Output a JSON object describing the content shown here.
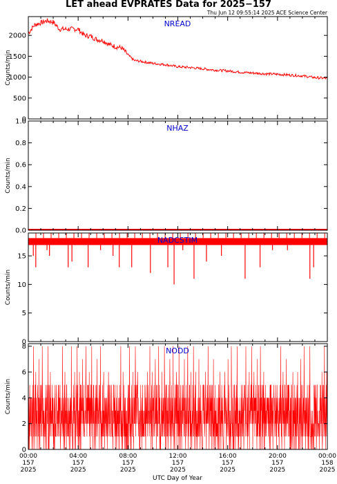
{
  "header": {
    "title": "LET ahead EVPRATES Data for 2025−157",
    "timestamp": "Thu Jun 12 09:55:14 2025 ACE Science Center"
  },
  "xaxis": {
    "label": "UTC Day of Year",
    "ticks": [
      {
        "hour": 0,
        "lines": [
          "00:00",
          "157",
          "2025"
        ]
      },
      {
        "hour": 4,
        "lines": [
          "04:00",
          "157",
          "2025"
        ]
      },
      {
        "hour": 8,
        "lines": [
          "08:00",
          "157",
          "2025"
        ]
      },
      {
        "hour": 12,
        "lines": [
          "12:00",
          "157",
          "2025"
        ]
      },
      {
        "hour": 16,
        "lines": [
          "16:00",
          "157",
          "2025"
        ]
      },
      {
        "hour": 20,
        "lines": [
          "20:00",
          "157",
          "2025"
        ]
      },
      {
        "hour": 24,
        "lines": [
          "00:00",
          "158",
          "2025"
        ]
      }
    ]
  },
  "colors": {
    "data": "#ff0000",
    "panel_title": "#0000cc",
    "axis": "#000000"
  },
  "chart_data": [
    {
      "type": "line",
      "title": "NREAD",
      "ylabel": "Counts/min",
      "ylim": [
        0,
        2450
      ],
      "yticks": [
        0,
        500,
        1000,
        1500,
        2000
      ],
      "x_units": "hours UTC, day 157",
      "series": [
        {
          "x": [
            0,
            0.5,
            1,
            1.5,
            2,
            2.5,
            3,
            3.5,
            4,
            4.5,
            5,
            5.5,
            6,
            6.5,
            7,
            7.5,
            8,
            8.5,
            9,
            10,
            11,
            12,
            13,
            14,
            15,
            16,
            17,
            18,
            19,
            20,
            21,
            22,
            23,
            24
          ],
          "y": [
            2050,
            2250,
            2300,
            2350,
            2320,
            2150,
            2150,
            2150,
            2150,
            2000,
            1980,
            1900,
            1880,
            1780,
            1730,
            1700,
            1530,
            1400,
            1380,
            1330,
            1300,
            1250,
            1230,
            1200,
            1170,
            1150,
            1120,
            1100,
            1080,
            1070,
            1050,
            1030,
            990,
            970
          ]
        }
      ]
    },
    {
      "type": "line",
      "title": "NHAZ",
      "ylabel": "Counts/min",
      "ylim": [
        0,
        1.0
      ],
      "yticks": [
        0.0,
        0.2,
        0.4,
        0.6,
        0.8,
        1.0
      ],
      "series": [
        {
          "x": [
            0,
            24
          ],
          "y": [
            0,
            0
          ]
        }
      ]
    },
    {
      "type": "line",
      "title": "NADCSTIM",
      "ylabel": "Counts/min",
      "ylim": [
        0,
        19
      ],
      "yticks": [
        0,
        5,
        10,
        15
      ],
      "series": [
        {
          "baseline": 17.5,
          "dips_x": [
            0.4,
            0.6,
            1.5,
            1.7,
            3.2,
            3.5,
            4.8,
            5.8,
            6.8,
            7.3,
            8.3,
            9.8,
            11.2,
            11.7,
            12.4,
            13.3,
            14.3,
            15.5,
            17.4,
            18.6,
            19.6,
            20.8,
            22.6,
            22.9
          ],
          "dips_y": [
            15,
            13,
            16,
            15,
            13,
            14,
            13,
            16,
            15,
            13,
            13,
            12,
            13,
            10,
            16,
            11,
            14,
            15,
            11,
            13,
            16,
            16,
            11,
            13
          ]
        }
      ]
    },
    {
      "type": "line",
      "title": "NODD",
      "ylabel": "Counts/min",
      "ylim": [
        0,
        8.2
      ],
      "yticks": [
        0,
        2,
        4,
        6,
        8
      ],
      "series": [
        {
          "note": "integer counts fluctuating 0-8, mostly between 0 and 5",
          "x_range": [
            0,
            24
          ],
          "values": [
            2,
            3,
            1,
            4,
            2,
            0,
            3,
            5,
            2,
            1,
            3,
            4,
            2,
            6,
            1,
            3,
            2,
            0,
            4,
            3,
            2,
            5,
            1,
            2,
            3,
            8,
            2,
            1,
            4,
            3,
            0,
            2,
            3,
            5,
            2,
            1,
            6,
            3,
            2,
            4,
            1,
            3,
            2,
            0,
            3,
            5,
            2,
            4,
            1,
            2,
            3,
            7,
            2,
            1,
            3,
            4,
            2,
            0,
            3,
            2,
            5,
            1,
            2,
            3,
            4,
            2,
            1,
            8,
            3,
            2
          ]
        }
      ]
    }
  ]
}
